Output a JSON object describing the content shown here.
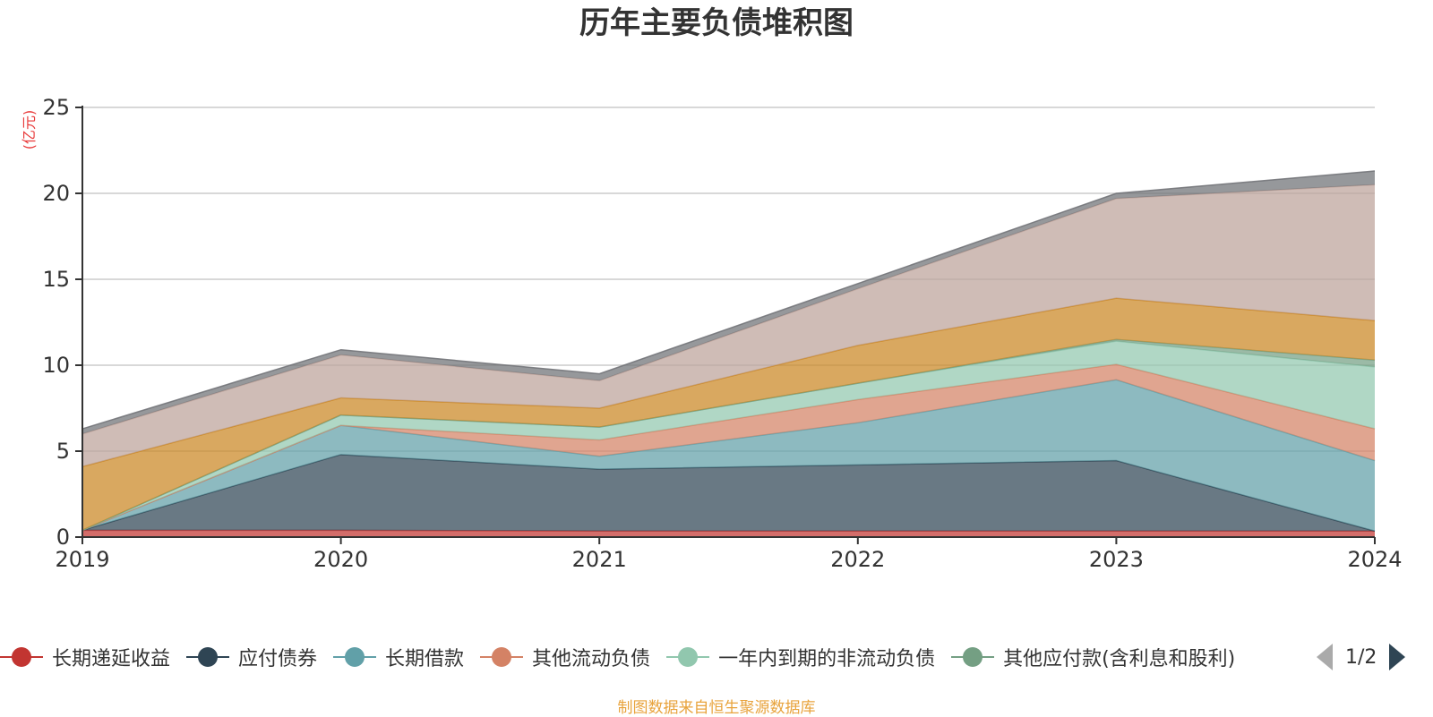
{
  "chart_data": {
    "type": "area",
    "title": "历年主要负债堆积图",
    "ylabel": "(亿元)",
    "xlabel": "",
    "categories": [
      "2019",
      "2020",
      "2021",
      "2022",
      "2023",
      "2024"
    ],
    "ylim": [
      0,
      25
    ],
    "yticks": [
      0,
      5,
      10,
      15,
      20,
      25
    ],
    "stacked": true,
    "grid": true,
    "series": [
      {
        "name": "长期递延收益",
        "color": "#c23531",
        "values": [
          0.4,
          0.4,
          0.35,
          0.35,
          0.35,
          0.35
        ]
      },
      {
        "name": "应付债券",
        "color": "#2f4554",
        "values": [
          0.0,
          4.4,
          3.6,
          3.85,
          4.1,
          0.0
        ]
      },
      {
        "name": "长期借款",
        "color": "#61a0a8",
        "values": [
          0.0,
          1.7,
          0.75,
          2.45,
          4.7,
          4.1
        ]
      },
      {
        "name": "其他流动负债",
        "color": "#d48265",
        "values": [
          0.0,
          0.0,
          0.95,
          1.35,
          0.9,
          1.85
        ]
      },
      {
        "name": "一年内到期的非流动负债",
        "color": "#91c7ae",
        "values": [
          0.0,
          0.6,
          0.75,
          0.95,
          1.35,
          3.6
        ]
      },
      {
        "name": "其他应付款(含利息和股利)",
        "color": "#749f83",
        "values": [
          0.0,
          0.0,
          0.0,
          0.0,
          0.1,
          0.4
        ]
      },
      {
        "name": "",
        "color": "#ca8622",
        "values": [
          3.7,
          1.0,
          1.1,
          2.2,
          2.4,
          2.3
        ]
      },
      {
        "name": "",
        "color": "#bda29a",
        "values": [
          1.9,
          2.5,
          1.6,
          3.3,
          5.8,
          7.9
        ]
      },
      {
        "name": "",
        "color": "#6e7074",
        "values": [
          0.3,
          0.3,
          0.4,
          0.3,
          0.3,
          0.8
        ]
      }
    ],
    "legend": {
      "position": "bottom",
      "page": "1/2"
    }
  },
  "source_note": "制图数据来自恒生聚源数据库"
}
